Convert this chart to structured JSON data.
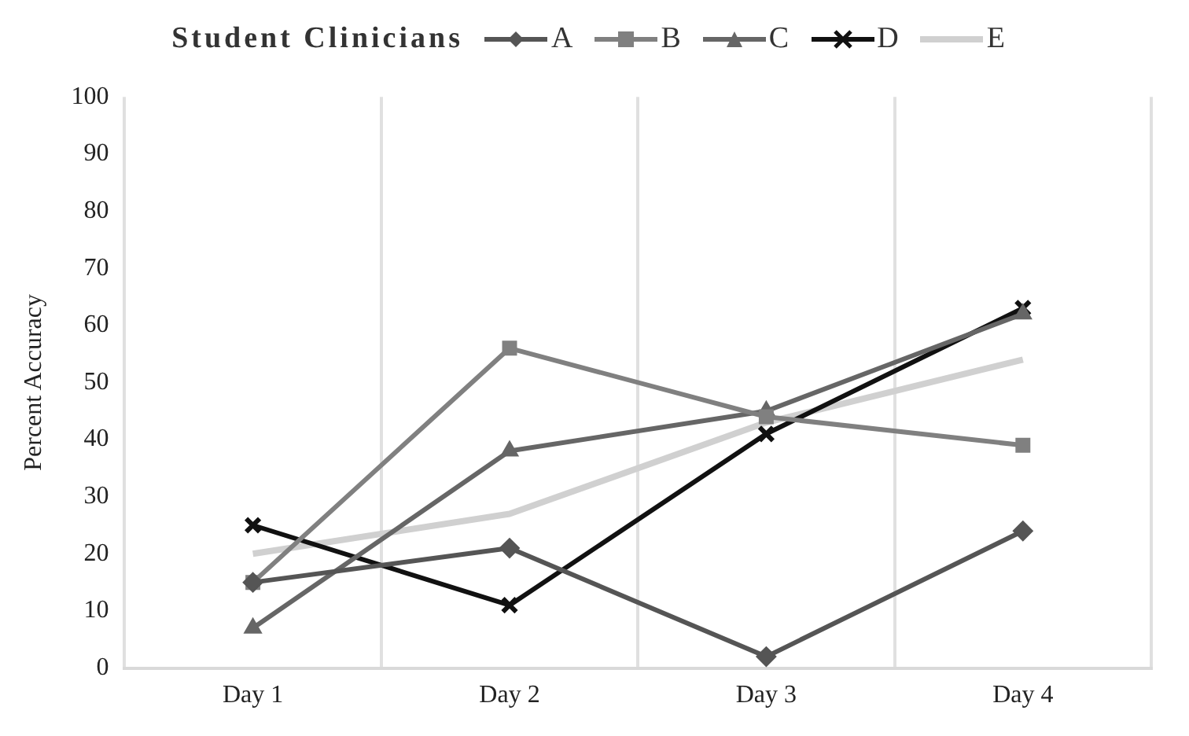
{
  "chart_data": {
    "type": "line",
    "legend_title": "Student Clinicians",
    "ylabel": "Percent Accuracy",
    "categories": [
      "Day 1",
      "Day 2",
      "Day 3",
      "Day 4"
    ],
    "series": [
      {
        "name": "A",
        "color": "#555555",
        "marker": "diamond",
        "values": [
          15,
          21,
          2,
          24
        ]
      },
      {
        "name": "B",
        "color": "#808080",
        "marker": "square",
        "values": [
          15,
          56,
          44,
          39
        ]
      },
      {
        "name": "C",
        "color": "#666666",
        "marker": "triangle",
        "values": [
          7,
          38,
          45,
          62
        ]
      },
      {
        "name": "D",
        "color": "#111111",
        "marker": "cross",
        "values": [
          25,
          11,
          41,
          63
        ]
      },
      {
        "name": "E",
        "color": "#d0d0d0",
        "marker": "none",
        "values": [
          20,
          27,
          43,
          54
        ]
      }
    ],
    "ylim": [
      0,
      100
    ],
    "yticks": [
      0,
      10,
      20,
      30,
      40,
      50,
      60,
      70,
      80,
      90,
      100
    ],
    "grid": "x",
    "legend": "top"
  }
}
